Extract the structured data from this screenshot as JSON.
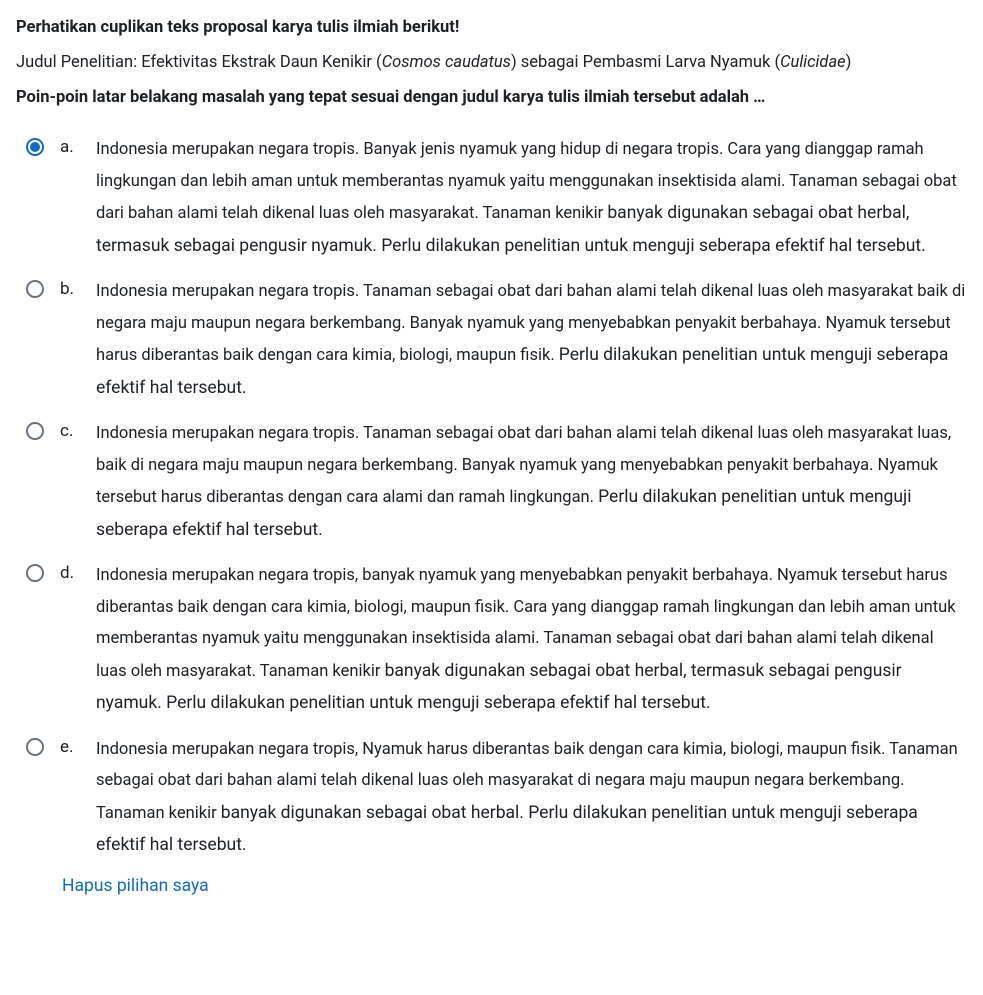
{
  "colors": {
    "text": "#1d2125",
    "accent": "#0f6cbf",
    "radio_border": "#6a737b",
    "background": "#ffffff"
  },
  "question": {
    "intro_bold": "Perhatikan cuplikan teks proposal karya tulis ilmiah berikut!",
    "line_prefix": "Judul Penelitian: Efektivitas Ekstrak Daun Kenikir (",
    "italic_1": "Cosmos caudatus",
    "line_mid": ") sebagai Pembasmi Larva Nyamuk (",
    "italic_2": "Culicidae",
    "line_suffix": ")",
    "prompt_bold": "Poin-poin latar belakang masalah yang tepat sesuai dengan judul karya tulis ilmiah tersebut adalah …"
  },
  "options": [
    {
      "letter": "a.",
      "selected": true,
      "text_a": "Indonesia merupakan negara tropis. Banyak jenis nyamuk yang hidup di negara tropis. Cara yang dianggap ramah lingkungan dan lebih aman untuk memberantas nyamuk yaitu menggunakan insektisida alami. Tanaman sebagai obat dari bahan alami telah dikenal luas oleh masyarakat. Tanaman kenikir ",
      "text_b": "banyak digunakan sebagai obat herbal, termasuk sebagai pengusir nyamuk. Perlu dilakukan penelitian untuk menguji seberapa efektif hal tersebut."
    },
    {
      "letter": "b.",
      "selected": false,
      "text_a": "Indonesia merupakan negara tropis. Tanaman sebagai obat dari bahan alami telah dikenal luas oleh masyarakat baik di negara maju maupun negara berkembang. Banyak nyamuk yang menyebabkan penyakit berbahaya. Nyamuk tersebut harus diberantas baik dengan cara kimia, biologi, maupun fisik. ",
      "text_b": "Perlu dilakukan penelitian untuk menguji seberapa efektif hal tersebut."
    },
    {
      "letter": "c.",
      "selected": false,
      "text_a": "Indonesia merupakan negara tropis. Tanaman sebagai obat dari bahan alami telah dikenal luas oleh masyarakat luas, baik di negara maju maupun negara berkembang. Banyak nyamuk yang menyebabkan penyakit berbahaya. Nyamuk tersebut harus diberantas dengan cara alami dan ramah lingkungan. ",
      "text_b": "Perlu dilakukan penelitian untuk menguji seberapa efektif hal tersebut."
    },
    {
      "letter": "d.",
      "selected": false,
      "text_a": "Indonesia merupakan negara tropis, banyak nyamuk yang menyebabkan penyakit berbahaya. Nyamuk tersebut harus diberantas baik dengan cara kimia, biologi, maupun fisik. Cara yang dianggap ramah lingkungan dan lebih aman untuk memberantas nyamuk yaitu menggunakan insektisida alami. Tanaman sebagai obat dari bahan alami telah dikenal luas oleh masyarakat. Tanaman kenikir ",
      "text_b": "banyak digunakan sebagai obat herbal, termasuk sebagai pengusir nyamuk. Perlu dilakukan penelitian untuk menguji seberapa efektif hal tersebut."
    },
    {
      "letter": "e.",
      "selected": false,
      "text_a": "Indonesia merupakan negara tropis, Nyamuk harus diberantas baik dengan cara kimia, biologi, maupun fisik. Tanaman sebagai obat dari bahan alami telah dikenal luas oleh masyarakat di negara maju maupun negara berkembang. Tanaman kenikir ",
      "text_b": "banyak digunakan sebagai obat herbal. Perlu dilakukan penelitian untuk menguji seberapa efektif hal tersebut."
    }
  ],
  "clear_choice_label": "Hapus pilihan saya"
}
